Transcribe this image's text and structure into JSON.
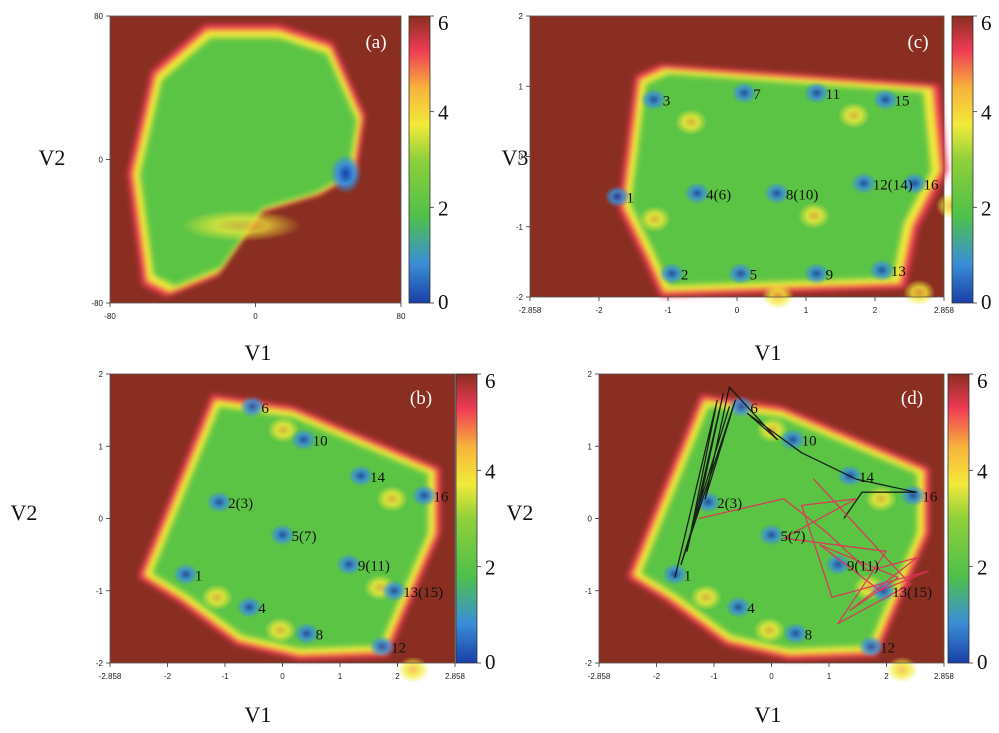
{
  "colors": {
    "background": "#8a2e22",
    "scale": [
      "#1a3fa8",
      "#3b8fd6",
      "#4fc04a",
      "#7cc83f",
      "#f2ea3a",
      "#f7b23c",
      "#ef3b55",
      "#8a2e22"
    ]
  },
  "chart_data": [
    {
      "type": "heatmap",
      "panel": "(a)",
      "xlabel": "V1",
      "ylabel": "V2",
      "xlim": [
        -80,
        80
      ],
      "ylim": [
        -80,
        80
      ],
      "xticks": [
        "-80",
        "0",
        "80"
      ],
      "yticks": [
        "80",
        "0",
        "-80"
      ],
      "colorbar": {
        "min": 0,
        "max": 6,
        "ticks": [
          "0",
          "2",
          "4",
          "6"
        ]
      },
      "minima": []
    },
    {
      "type": "heatmap",
      "panel": "(c)",
      "xlabel": "V1",
      "ylabel": "V3",
      "xlim": [
        -2.858,
        2.858
      ],
      "ylim": [
        -2.1,
        2.1
      ],
      "xticks": [
        "-2.858",
        "-2",
        "-1",
        "0",
        "1",
        "2",
        "2.858"
      ],
      "yticks": [
        "2",
        "1",
        "0",
        "-1",
        "-2"
      ],
      "colorbar": {
        "min": 0,
        "max": 6,
        "ticks": [
          "0",
          "2",
          "4",
          "6"
        ]
      },
      "minima": [
        {
          "label": "1",
          "x": -1.65,
          "y": -0.6
        },
        {
          "label": "2",
          "x": -0.9,
          "y": -1.75
        },
        {
          "label": "3",
          "x": -1.15,
          "y": 0.85
        },
        {
          "label": "4(6)",
          "x": -0.55,
          "y": -0.55
        },
        {
          "label": "5",
          "x": 0.05,
          "y": -1.75
        },
        {
          "label": "7",
          "x": 0.1,
          "y": 0.95
        },
        {
          "label": "8(10)",
          "x": 0.55,
          "y": -0.55
        },
        {
          "label": "9",
          "x": 1.1,
          "y": -1.75
        },
        {
          "label": "11",
          "x": 1.1,
          "y": 0.95
        },
        {
          "label": "12(14)",
          "x": 1.75,
          "y": -0.4
        },
        {
          "label": "13",
          "x": 2.0,
          "y": -1.7
        },
        {
          "label": "15",
          "x": 2.05,
          "y": 0.85
        },
        {
          "label": "16",
          "x": 2.45,
          "y": -0.4
        }
      ]
    },
    {
      "type": "heatmap",
      "panel": "(b)",
      "xlabel": "V1",
      "ylabel": "V2",
      "xlim": [
        -2.858,
        2.858
      ],
      "ylim": [
        -2.2,
        2.2
      ],
      "xticks": [
        "-2.858",
        "-2",
        "-1",
        "0",
        "1",
        "2",
        "2.858"
      ],
      "yticks": [
        "2",
        "1",
        "0",
        "-1",
        "-2"
      ],
      "colorbar": {
        "min": 0,
        "max": 6,
        "ticks": [
          "0",
          "2",
          "4",
          "6"
        ]
      },
      "minima": [
        {
          "label": "1",
          "x": -1.6,
          "y": -0.85
        },
        {
          "label": "2(3)",
          "x": -1.05,
          "y": 0.25
        },
        {
          "label": "4",
          "x": -0.55,
          "y": -1.35
        },
        {
          "label": "5(7)",
          "x": 0.0,
          "y": -0.25
        },
        {
          "label": "6",
          "x": -0.5,
          "y": 1.7
        },
        {
          "label": "8",
          "x": 0.4,
          "y": -1.75
        },
        {
          "label": "9(11)",
          "x": 1.1,
          "y": -0.7
        },
        {
          "label": "10",
          "x": 0.35,
          "y": 1.2
        },
        {
          "label": "12",
          "x": 1.65,
          "y": -1.95
        },
        {
          "label": "13(15)",
          "x": 1.85,
          "y": -1.1
        },
        {
          "label": "14",
          "x": 1.3,
          "y": 0.65
        },
        {
          "label": "16",
          "x": 2.35,
          "y": 0.35
        }
      ]
    },
    {
      "type": "heatmap",
      "panel": "(d)",
      "xlabel": "V1",
      "ylabel": "V2",
      "xlim": [
        -2.858,
        2.858
      ],
      "ylim": [
        -2.2,
        2.2
      ],
      "xticks": [
        "-2.858",
        "-2",
        "-1",
        "0",
        "1",
        "2",
        "2.858"
      ],
      "yticks": [
        "2",
        "1",
        "0",
        "-1",
        "-2"
      ],
      "colorbar": {
        "min": 0,
        "max": 6,
        "ticks": [
          "0",
          "2",
          "4",
          "6"
        ]
      },
      "minima": [
        {
          "label": "1",
          "x": -1.6,
          "y": -0.85
        },
        {
          "label": "2(3)",
          "x": -1.05,
          "y": 0.25
        },
        {
          "label": "4",
          "x": -0.55,
          "y": -1.35
        },
        {
          "label": "5(7)",
          "x": 0.0,
          "y": -0.25
        },
        {
          "label": "6",
          "x": -0.5,
          "y": 1.7
        },
        {
          "label": "8",
          "x": 0.4,
          "y": -1.75
        },
        {
          "label": "9(11)",
          "x": 1.1,
          "y": -0.7
        },
        {
          "label": "10",
          "x": 0.35,
          "y": 1.2
        },
        {
          "label": "12",
          "x": 1.65,
          "y": -1.95
        },
        {
          "label": "13(15)",
          "x": 1.85,
          "y": -1.1
        },
        {
          "label": "14",
          "x": 1.3,
          "y": 0.65
        },
        {
          "label": "16",
          "x": 2.35,
          "y": 0.35
        }
      ],
      "trajectories": [
        {
          "color": "#111111",
          "path": [
            [
              -1.6,
              -0.9
            ],
            [
              -0.9,
              1.8
            ],
            [
              -1.4,
              -0.5
            ],
            [
              -0.8,
              1.9
            ],
            [
              -1.2,
              0.2
            ],
            [
              -0.7,
              1.7
            ],
            [
              -1.5,
              -0.7
            ],
            [
              -0.6,
              1.8
            ],
            [
              -1.1,
              0.3
            ],
            [
              -0.7,
              2.0
            ],
            [
              0.1,
              1.2
            ],
            [
              -0.4,
              1.6
            ],
            [
              0.5,
              1.0
            ],
            [
              1.4,
              0.6
            ],
            [
              2.4,
              0.4
            ],
            [
              1.5,
              0.4
            ],
            [
              1.2,
              0.0
            ]
          ]
        },
        {
          "color": "#e0305a",
          "path": [
            [
              -1.2,
              0.0
            ],
            [
              0.2,
              0.3
            ],
            [
              0.9,
              -0.2
            ],
            [
              1.6,
              -0.8
            ],
            [
              2.4,
              -0.6
            ],
            [
              1.3,
              -1.4
            ],
            [
              2.1,
              -0.9
            ],
            [
              0.8,
              -0.4
            ],
            [
              1.8,
              -1.1
            ],
            [
              2.6,
              -0.8
            ],
            [
              1.0,
              -1.2
            ],
            [
              0.5,
              0.2
            ],
            [
              1.4,
              0.3
            ],
            [
              0.2,
              -0.3
            ],
            [
              1.9,
              -0.5
            ],
            [
              1.1,
              -1.6
            ],
            [
              2.3,
              -1.0
            ],
            [
              0.7,
              0.6
            ],
            [
              1.5,
              -0.2
            ]
          ]
        }
      ]
    }
  ]
}
